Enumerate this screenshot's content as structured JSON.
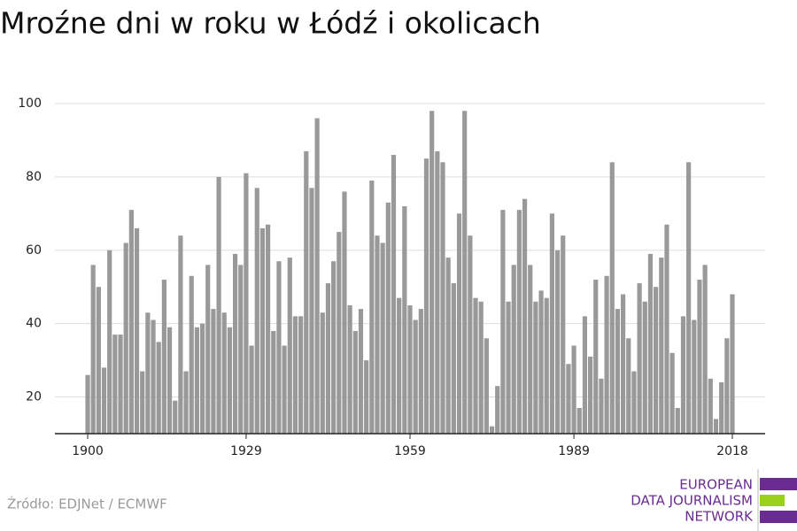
{
  "chart_data": {
    "type": "bar",
    "title": "Mroźne dni w roku w Łódź i okolicach",
    "x": [
      1900,
      1901,
      1902,
      1903,
      1904,
      1905,
      1906,
      1907,
      1908,
      1909,
      1910,
      1911,
      1912,
      1913,
      1914,
      1915,
      1916,
      1917,
      1918,
      1919,
      1920,
      1921,
      1922,
      1923,
      1924,
      1925,
      1926,
      1927,
      1928,
      1929,
      1930,
      1931,
      1932,
      1933,
      1934,
      1935,
      1936,
      1937,
      1938,
      1939,
      1940,
      1941,
      1942,
      1943,
      1944,
      1945,
      1946,
      1947,
      1948,
      1949,
      1950,
      1951,
      1952,
      1953,
      1954,
      1955,
      1956,
      1957,
      1958,
      1959,
      1960,
      1961,
      1962,
      1963,
      1964,
      1965,
      1966,
      1967,
      1968,
      1969,
      1970,
      1971,
      1972,
      1973,
      1974,
      1975,
      1976,
      1977,
      1978,
      1979,
      1980,
      1981,
      1982,
      1983,
      1984,
      1985,
      1986,
      1987,
      1988,
      1989,
      1990,
      1991,
      1992,
      1993,
      1994,
      1995,
      1996,
      1997,
      1998,
      1999,
      2000,
      2001,
      2002,
      2003,
      2004,
      2005,
      2006,
      2007,
      2008,
      2009,
      2010,
      2011,
      2012,
      2013,
      2014,
      2015,
      2016,
      2017,
      2018
    ],
    "values": [
      26,
      56,
      50,
      28,
      60,
      37,
      37,
      62,
      71,
      66,
      27,
      43,
      41,
      35,
      52,
      39,
      19,
      64,
      27,
      53,
      39,
      40,
      56,
      44,
      80,
      43,
      39,
      59,
      56,
      81,
      34,
      77,
      66,
      67,
      38,
      57,
      34,
      58,
      42,
      42,
      87,
      77,
      96,
      43,
      51,
      57,
      65,
      76,
      45,
      38,
      44,
      30,
      79,
      64,
      62,
      73,
      86,
      47,
      72,
      45,
      41,
      44,
      85,
      98,
      87,
      84,
      58,
      51,
      70,
      98,
      64,
      47,
      46,
      36,
      12,
      23,
      71,
      46,
      56,
      71,
      74,
      56,
      46,
      49,
      47,
      70,
      60,
      64,
      29,
      34,
      17,
      42,
      31,
      52,
      25,
      53,
      84,
      44,
      48,
      36,
      27,
      51,
      46,
      59,
      50,
      58,
      67,
      32,
      17,
      42,
      84,
      41,
      52,
      56,
      25,
      14,
      24,
      36,
      48
    ],
    "color": "#999999",
    "xlim": [
      1894,
      2024
    ],
    "xticks": [
      1900,
      1929,
      1959,
      1989,
      2018
    ],
    "ylim": [
      10,
      100
    ],
    "yticks": [
      20,
      40,
      60,
      80,
      100
    ],
    "grid": true,
    "source": "Źródło: EDJNet / ECMWF",
    "logo": [
      "EUROPEAN",
      "DATA JOURNALISM",
      "NETWORK"
    ]
  }
}
